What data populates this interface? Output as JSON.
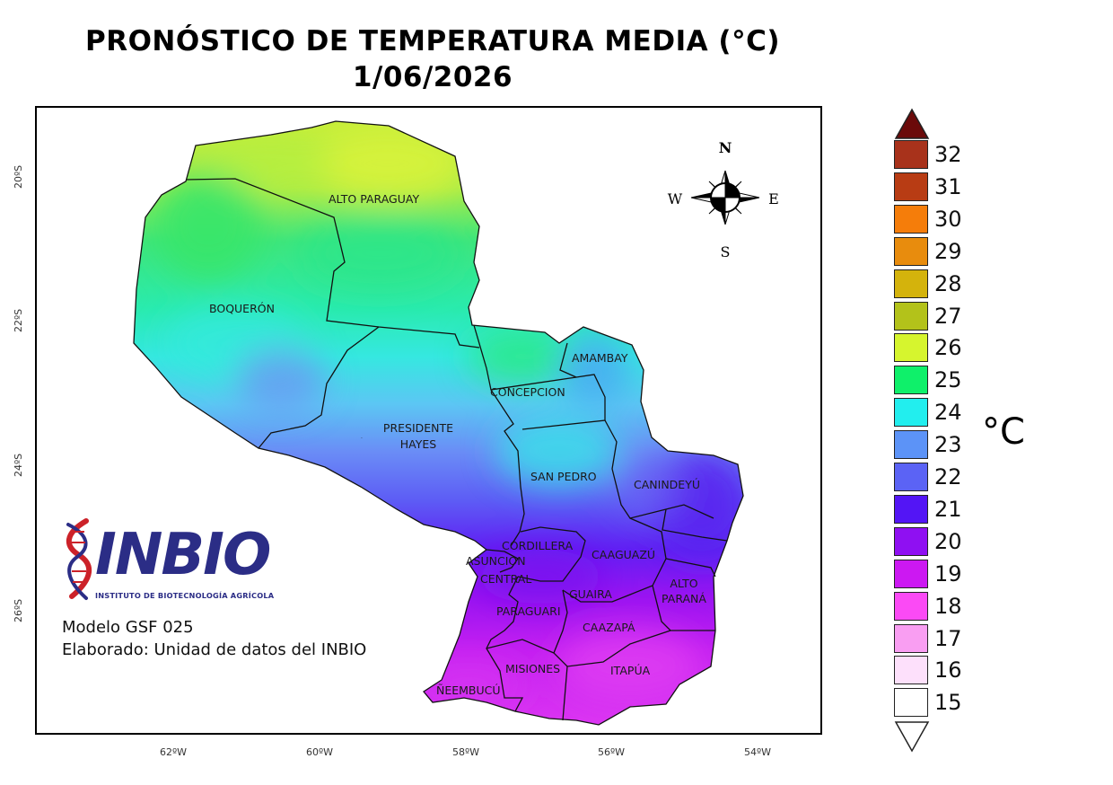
{
  "title": {
    "line1": "PRONÓSTICO DE TEMPERATURA MEDIA (°C)",
    "line2": "1/06/2026"
  },
  "map": {
    "latitude_ticks": [
      "20ºS",
      "22ºS",
      "24ºS",
      "26ºS"
    ],
    "longitude_ticks": [
      "62ºW",
      "60ºW",
      "58ºW",
      "56ºW",
      "54ºW"
    ],
    "departments": {
      "alto_paraguay": "ALTO PARAGUAY",
      "boqueron": "BOQUERÓN",
      "presidente_hayes_1": "PRESIDENTE",
      "presidente_hayes_2": "HAYES",
      "concepcion": "CONCEPCION",
      "amambay": "AMAMBAY",
      "san_pedro": "SAN PEDRO",
      "canindeyu": "CANINDEYÚ",
      "cordillera": "CORDILLERA",
      "asuncion": "ASUNCION",
      "central": "CENTRAL",
      "caaguazu": "CAAGUAZÚ",
      "alto_parana_1": "ALTO",
      "alto_parana_2": "PARANÁ",
      "guaira": "GUAIRA",
      "paraguari": "PARAGUARI",
      "caazapa": "CAAZAPÁ",
      "misiones": "MISIONES",
      "itapua": "ITAPÚA",
      "neembucu": "ÑEEMBUCÚ"
    },
    "compass": {
      "n": "N",
      "s": "S",
      "e": "E",
      "w": "W"
    }
  },
  "credits": {
    "logo_text": "INBIO",
    "logo_subtitle": "INSTITUTO DE BIOTECNOLOGÍA AGRÍCOLA",
    "model": "Modelo GSF 025",
    "author": "Elaborado: Unidad de datos del INBIO"
  },
  "legend": {
    "unit": "°C",
    "over_color": "#6b0a0a",
    "under_color": "#ffffff",
    "classes": [
      {
        "label": "32",
        "color": "#a8321b"
      },
      {
        "label": "31",
        "color": "#b83c14"
      },
      {
        "label": "30",
        "color": "#f57d0a"
      },
      {
        "label": "29",
        "color": "#e88c0d"
      },
      {
        "label": "28",
        "color": "#d4b30c"
      },
      {
        "label": "27",
        "color": "#b3c21a"
      },
      {
        "label": "26",
        "color": "#d6f52e"
      },
      {
        "label": "25",
        "color": "#0ff06a"
      },
      {
        "label": "24",
        "color": "#22eeee"
      },
      {
        "label": "23",
        "color": "#5c93f7"
      },
      {
        "label": "22",
        "color": "#5b63f5"
      },
      {
        "label": "21",
        "color": "#5315f5"
      },
      {
        "label": "20",
        "color": "#8f10f2"
      },
      {
        "label": "19",
        "color": "#cc18f2"
      },
      {
        "label": "18",
        "color": "#fb4af5"
      },
      {
        "label": "17",
        "color": "#f99ef2"
      },
      {
        "label": "16",
        "color": "#fde0fb"
      },
      {
        "label": "15",
        "color": "#ffffff"
      }
    ]
  }
}
